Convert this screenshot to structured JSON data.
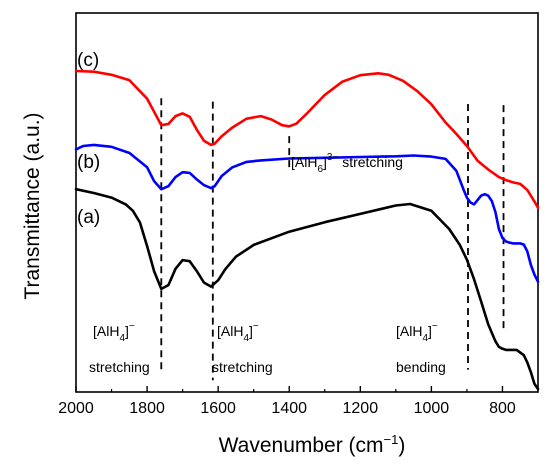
{
  "chart_data": {
    "type": "line",
    "title": "",
    "xlabel": "Wavenumber (cm",
    "xlabel_sup": "−1",
    "xlabel_close": ")",
    "ylabel": "Transmittance (a.u.)",
    "xlim": [
      2000,
      700
    ],
    "x_reversed": true,
    "ylim": [
      0,
      100
    ],
    "y_ticks_shown": false,
    "grid": false,
    "x_ticks": [
      2000,
      1800,
      1600,
      1400,
      1200,
      1000,
      800
    ],
    "x_tick_labels": [
      "2000",
      "1800",
      "1600",
      "1400",
      "1200",
      "1000",
      "800"
    ],
    "series": [
      {
        "name": "(c)",
        "color": "#ff0000",
        "x": [
          2000,
          1950,
          1900,
          1850,
          1800,
          1775,
          1760,
          1740,
          1720,
          1700,
          1680,
          1660,
          1640,
          1620,
          1610,
          1590,
          1560,
          1520,
          1480,
          1450,
          1420,
          1400,
          1380,
          1350,
          1300,
          1250,
          1200,
          1150,
          1120,
          1080,
          1040,
          1000,
          960,
          930,
          900,
          870,
          840,
          810,
          790,
          770,
          750,
          730,
          710,
          700
        ],
        "values": [
          84.7,
          84.5,
          83.7,
          82.3,
          77.4,
          73.0,
          70.4,
          70.7,
          72.8,
          73.5,
          72.6,
          69.2,
          66.3,
          65.2,
          65.5,
          67.5,
          69.8,
          72.1,
          72.8,
          71.9,
          70.4,
          70.1,
          70.8,
          73.5,
          78.4,
          81.9,
          83.6,
          84.1,
          83.7,
          82.1,
          79.4,
          75.9,
          71.1,
          68.1,
          64.9,
          61.0,
          58.7,
          56.7,
          55.9,
          55.3,
          54.9,
          53.3,
          50.3,
          48.6
        ]
      },
      {
        "name": "(b)",
        "color": "#0000ff",
        "x": [
          2000,
          1980,
          1950,
          1900,
          1850,
          1800,
          1780,
          1760,
          1740,
          1720,
          1700,
          1680,
          1660,
          1640,
          1620,
          1610,
          1590,
          1560,
          1520,
          1480,
          1400,
          1300,
          1200,
          1100,
          1050,
          1000,
          960,
          930,
          910,
          900,
          890,
          880,
          860,
          850,
          840,
          830,
          820,
          810,
          800,
          790,
          780,
          770,
          760,
          750,
          740,
          730,
          720,
          710,
          700
        ],
        "values": [
          64.0,
          64.9,
          65.2,
          64.7,
          63.1,
          59.3,
          55.6,
          53.5,
          54.3,
          56.7,
          58.0,
          57.8,
          56.1,
          54.6,
          53.8,
          54.3,
          57.0,
          59.3,
          60.7,
          61.1,
          61.6,
          61.8,
          62.0,
          62.2,
          62.4,
          62.1,
          61.5,
          58.4,
          53.5,
          51.3,
          50.0,
          49.5,
          51.8,
          52.2,
          51.8,
          50.4,
          47.5,
          43.0,
          40.6,
          39.7,
          39.4,
          39.2,
          39.2,
          39.2,
          38.9,
          37.1,
          33.5,
          31.0,
          29.1
        ]
      },
      {
        "name": "(a)",
        "color": "#000000",
        "x": [
          2000,
          1950,
          1900,
          1860,
          1840,
          1820,
          1800,
          1780,
          1760,
          1740,
          1720,
          1700,
          1680,
          1660,
          1640,
          1620,
          1600,
          1580,
          1550,
          1500,
          1400,
          1300,
          1200,
          1100,
          1060,
          1000,
          950,
          920,
          900,
          880,
          860,
          840,
          820,
          810,
          800,
          790,
          780,
          770,
          760,
          740,
          730,
          720,
          710,
          700
        ],
        "values": [
          53.5,
          52.5,
          51.3,
          49.5,
          47.8,
          44.7,
          38.5,
          31.8,
          27.2,
          28.2,
          32.5,
          34.8,
          34.5,
          31.9,
          28.9,
          27.8,
          29.5,
          32.4,
          35.7,
          38.8,
          42.3,
          44.8,
          47.0,
          49.2,
          49.6,
          47.8,
          43.0,
          38.8,
          34.9,
          29.8,
          23.9,
          17.9,
          13.4,
          11.9,
          11.4,
          11.1,
          11.1,
          11.1,
          11.1,
          9.7,
          7.8,
          5.2,
          2.2,
          0.8
        ]
      }
    ],
    "dashed_lines_x": [
      1760,
      1615,
      1400,
      897,
      797
    ],
    "dashed_lines": [
      {
        "x": 1760,
        "y_from": 77.5,
        "y_to": 4.8
      },
      {
        "x": 1615,
        "y_from": 76.6,
        "y_to": 3.1
      },
      {
        "x": 1400,
        "y_from": 67.5,
        "y_to": 58.7
      },
      {
        "x": 897,
        "y_from": 76.0,
        "y_to": 5.9
      },
      {
        "x": 797,
        "y_from": 75.7,
        "y_to": 16.5
      }
    ],
    "annotations": [
      {
        "pre": "[AlH",
        "sub": "4",
        "sup": "]",
        "supsup": "−",
        "text2": "stretching"
      },
      {
        "pre": "[AlH",
        "sub": "4",
        "sup": "]",
        "supsup": "−",
        "text2": "stretching"
      },
      {
        "pre": "[AlH",
        "sub": "6",
        "sup": "]",
        "supsup": "3−",
        "suffix": " stretching"
      },
      {
        "pre": "[AlH",
        "sub": "4",
        "sup": "]",
        "supsup": "−",
        "text2": "bending"
      }
    ]
  }
}
